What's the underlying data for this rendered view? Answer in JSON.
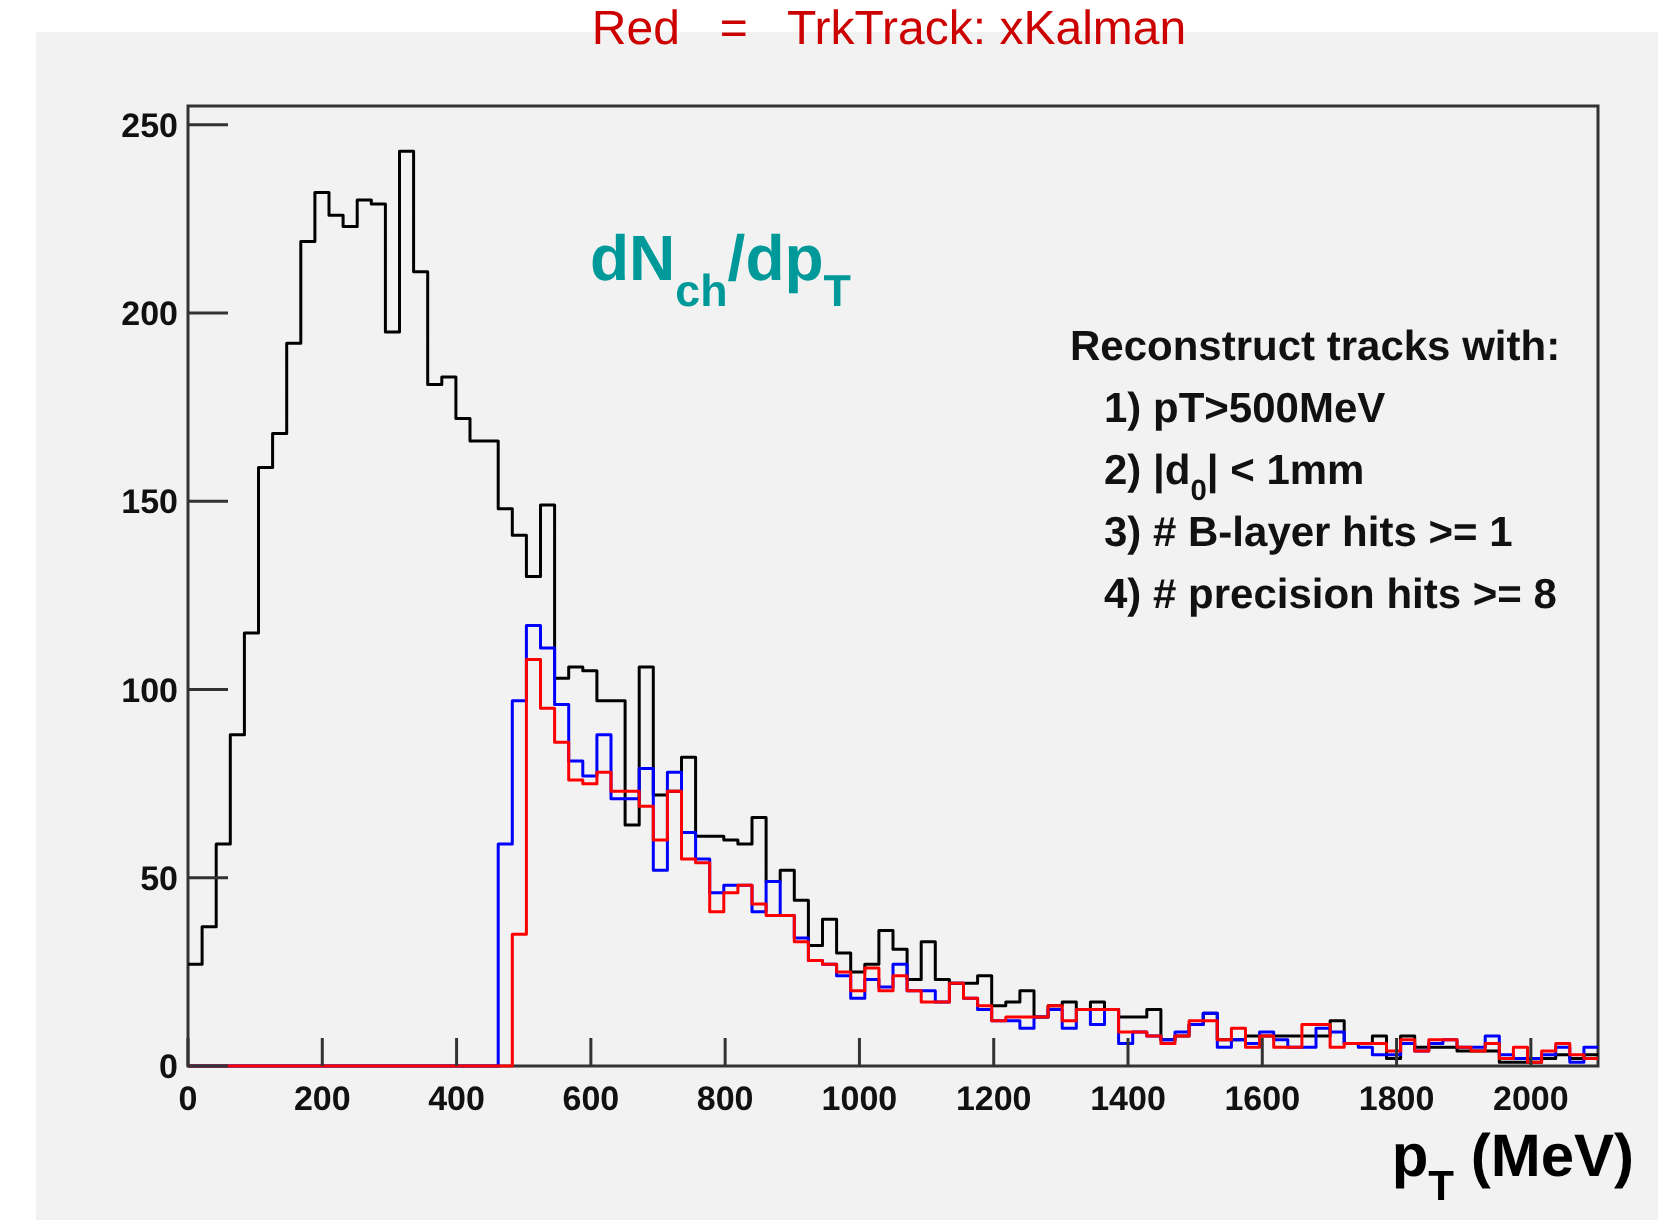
{
  "chart_data": {
    "type": "histogram",
    "title": "Red   =   TrkTrack: xKalman",
    "xlabel": "p$_{T}$ (MeV)",
    "annotations": [
      "dN$_{ch}$/dp$_{T}$",
      "Reconstruct tracks with:",
      "1) pT>500MeV",
      "2) |d$_{0}$| < 1mm",
      "3) # B-layer hits >= 1",
      "4) # precision hits >= 8"
    ],
    "bins": [
      0,
      21,
      42,
      63,
      84,
      105,
      126,
      147,
      168,
      189,
      210,
      231,
      252,
      273,
      294,
      315,
      336,
      357,
      378,
      399,
      420,
      441,
      462,
      483,
      504,
      525,
      546,
      567,
      588,
      609,
      630,
      651,
      672,
      693,
      714,
      735,
      756,
      777,
      798,
      819,
      840,
      861,
      882,
      903,
      924,
      945,
      966,
      987,
      1008,
      1029,
      1050,
      1071,
      1092,
      1113,
      1134,
      1155,
      1176,
      1197,
      1218,
      1239,
      1260,
      1281,
      1302,
      1323,
      1344,
      1365,
      1386,
      1407,
      1428,
      1449,
      1470,
      1491,
      1512,
      1533,
      1554,
      1575,
      1596,
      1617,
      1638,
      1659,
      1680,
      1701,
      1722,
      1743,
      1764,
      1785,
      1806,
      1827,
      1848,
      1869,
      1890,
      1911,
      1932,
      1953,
      1974,
      1995,
      2016,
      2037,
      2058,
      2079,
      2100
    ],
    "series": [
      {
        "color": "#000000",
        "values": [
          27,
          37,
          59,
          88,
          115,
          159,
          168,
          192,
          219,
          232,
          226,
          223,
          230,
          229,
          195,
          243,
          211,
          181,
          183,
          172,
          166,
          166,
          148,
          141,
          130,
          149,
          103,
          106,
          105,
          97,
          97,
          64,
          106,
          72,
          73,
          82,
          61,
          61,
          60,
          59,
          66,
          49,
          52,
          44,
          32,
          39,
          30,
          25,
          27,
          36,
          31,
          23,
          33,
          23,
          22,
          22,
          24,
          16,
          17,
          20,
          13,
          16,
          17,
          15,
          17,
          15,
          13,
          13,
          15,
          7,
          8,
          11,
          14,
          7,
          7,
          8,
          8,
          8,
          8,
          8,
          8,
          12,
          6,
          6,
          8,
          2,
          8,
          5,
          5,
          5,
          4,
          4,
          4,
          1,
          1,
          1,
          2,
          3,
          2,
          3
        ]
      },
      {
        "color": "#0000ff",
        "values": [
          0,
          0,
          0,
          0,
          0,
          0,
          0,
          0,
          0,
          0,
          0,
          0,
          0,
          0,
          0,
          0,
          0,
          0,
          0,
          0,
          0,
          0,
          59,
          97,
          117,
          111,
          96,
          81,
          77,
          88,
          71,
          71,
          79,
          52,
          78,
          62,
          55,
          46,
          48,
          48,
          41,
          49,
          40,
          34,
          28,
          27,
          24,
          18,
          23,
          21,
          27,
          20,
          20,
          17,
          22,
          18,
          15,
          12,
          12,
          10,
          13,
          15,
          10,
          15,
          11,
          15,
          6,
          9,
          8,
          7,
          9,
          11,
          14,
          5,
          7,
          6,
          9,
          7,
          5,
          5,
          10,
          9,
          6,
          5,
          3,
          3,
          6,
          4,
          6,
          7,
          5,
          5,
          8,
          3,
          2,
          2,
          3,
          5,
          1,
          5
        ]
      },
      {
        "color": "#ff0000",
        "values": [
          0,
          0,
          0,
          0,
          0,
          0,
          0,
          0,
          0,
          0,
          0,
          0,
          0,
          0,
          0,
          0,
          0,
          0,
          0,
          0,
          0,
          0,
          0,
          35,
          108,
          95,
          86,
          76,
          75,
          78,
          73,
          73,
          69,
          60,
          73,
          55,
          54,
          41,
          46,
          48,
          43,
          40,
          40,
          33,
          28,
          27,
          25,
          20,
          26,
          20,
          24,
          20,
          17,
          17,
          22,
          18,
          16,
          12,
          13,
          13,
          13,
          16,
          12,
          15,
          15,
          15,
          9,
          9,
          8,
          6,
          8,
          12,
          12,
          7,
          10,
          5,
          8,
          5,
          5,
          11,
          11,
          5,
          6,
          6,
          6,
          4,
          7,
          4,
          7,
          7,
          5,
          4,
          6,
          2,
          5,
          1,
          4,
          6,
          3,
          2
        ]
      }
    ],
    "xlim": [
      0,
      2100
    ],
    "xticks": [
      0,
      200,
      400,
      600,
      800,
      1000,
      1200,
      1400,
      1600,
      1800,
      2000
    ],
    "ylim": [
      0,
      255
    ],
    "yticks": [
      0,
      50,
      100,
      150,
      200,
      250
    ]
  }
}
